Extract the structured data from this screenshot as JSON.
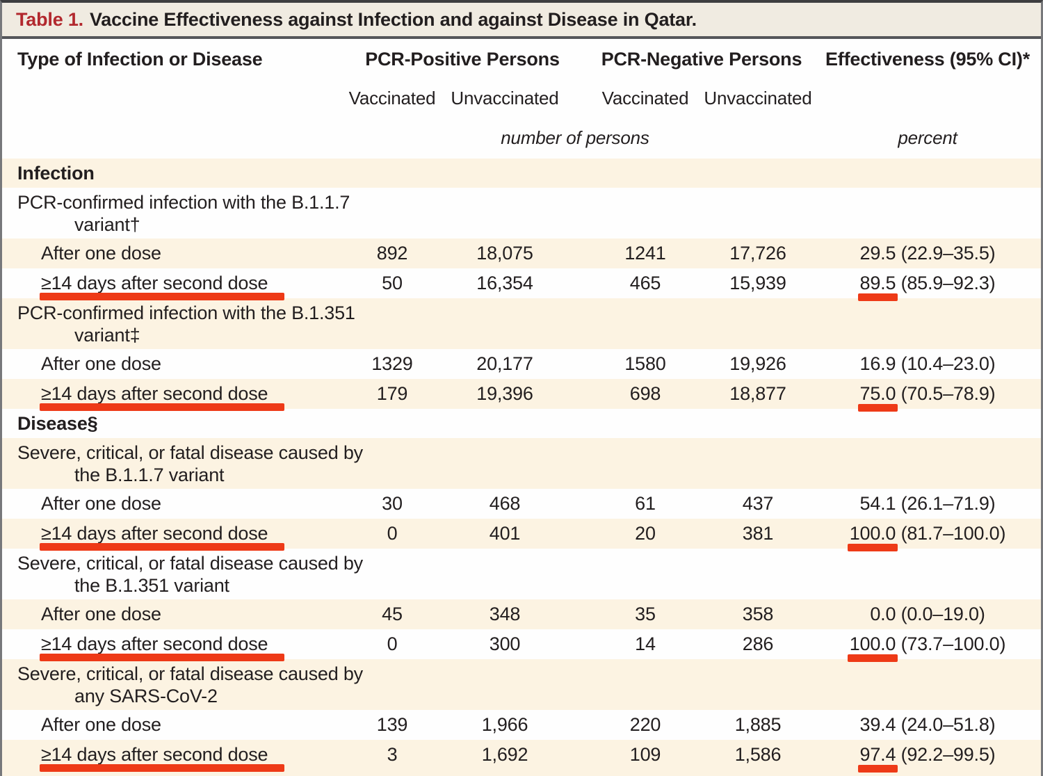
{
  "title": {
    "prefix": "Table 1.",
    "text": "Vaccine Effectiveness against Infection and against Disease in Qatar."
  },
  "header": {
    "type_col": "Type of Infection or Disease",
    "group_positive": "PCR-Positive Persons",
    "group_negative": "PCR-Negative Persons",
    "effectiveness": "Effectiveness (95% CI)*",
    "sub_headers": [
      "Vaccinated",
      "Unvaccinated",
      "Vaccinated",
      "Unvaccinated"
    ],
    "unit_persons": "number of persons",
    "unit_percent": "percent"
  },
  "colors": {
    "accent_red": "#ee3a17",
    "title_red": "#b2282e",
    "cream_row": "#fcf3e2",
    "white_row": "#fefefe",
    "titlebar_bg": "#f0ebe1"
  },
  "rows": [
    {
      "type": "section",
      "shade": "cream",
      "label": "Infection"
    },
    {
      "type": "label",
      "shade": "white",
      "line1": "PCR-confirmed infection with the B.1.1.7",
      "line2": "variant†"
    },
    {
      "type": "data",
      "shade": "cream",
      "label": "After one dose",
      "values": [
        "892",
        "18,075",
        "1241",
        "17,726"
      ],
      "effectiveness": "29.5 (22.9–35.5)",
      "underline_label": false,
      "underline_effect": false
    },
    {
      "type": "data",
      "shade": "white",
      "label": "≥14 days after second dose",
      "values": [
        "50",
        "16,354",
        "465",
        "15,939"
      ],
      "effectiveness": "89.5 (85.9–92.3)",
      "underline_label": true,
      "underline_effect": true
    },
    {
      "type": "label",
      "shade": "cream",
      "line1": "PCR-confirmed infection with the B.1.351",
      "line2": "variant‡"
    },
    {
      "type": "data",
      "shade": "white",
      "label": "After one dose",
      "values": [
        "1329",
        "20,177",
        "1580",
        "19,926"
      ],
      "effectiveness": "16.9 (10.4–23.0)",
      "underline_label": false,
      "underline_effect": false
    },
    {
      "type": "data",
      "shade": "cream",
      "label": "≥14 days after second dose",
      "values": [
        "179",
        "19,396",
        "698",
        "18,877"
      ],
      "effectiveness": "75.0 (70.5–78.9)",
      "underline_label": true,
      "underline_effect": true
    },
    {
      "type": "section",
      "shade": "white",
      "label": "Disease§"
    },
    {
      "type": "label",
      "shade": "cream",
      "line1": "Severe, critical, or fatal disease caused by",
      "line2": "the B.1.1.7 variant"
    },
    {
      "type": "data",
      "shade": "white",
      "label": "After one dose",
      "values": [
        "30",
        "468",
        "61",
        "437"
      ],
      "effectiveness": "54.1 (26.1–71.9)",
      "underline_label": false,
      "underline_effect": false
    },
    {
      "type": "data",
      "shade": "cream",
      "label": "≥14 days after second dose",
      "values": [
        "0",
        "401",
        "20",
        "381"
      ],
      "effectiveness": "100.0 (81.7–100.0)",
      "underline_label": true,
      "underline_effect": true
    },
    {
      "type": "label",
      "shade": "white",
      "line1": "Severe, critical, or fatal disease caused by",
      "line2": "the B.1.351 variant"
    },
    {
      "type": "data",
      "shade": "cream",
      "label": "After one dose",
      "values": [
        "45",
        "348",
        "35",
        "358"
      ],
      "effectiveness": "0.0 (0.0–19.0)",
      "underline_label": false,
      "underline_effect": false
    },
    {
      "type": "data",
      "shade": "white",
      "label": "≥14 days after second dose",
      "values": [
        "0",
        "300",
        "14",
        "286"
      ],
      "effectiveness": "100.0 (73.7–100.0)",
      "underline_label": true,
      "underline_effect": true
    },
    {
      "type": "label",
      "shade": "cream",
      "line1": "Severe, critical, or fatal disease caused by",
      "line2": "any SARS-CoV-2"
    },
    {
      "type": "data",
      "shade": "white",
      "label": "After one dose",
      "values": [
        "139",
        "1,966",
        "220",
        "1,885"
      ],
      "effectiveness": "39.4 (24.0–51.8)",
      "underline_label": false,
      "underline_effect": false
    },
    {
      "type": "data",
      "shade": "cream",
      "label": "≥14 days after second dose",
      "values": [
        "3",
        "1,692",
        "109",
        "1,586"
      ],
      "effectiveness": "97.4 (92.2–99.5)",
      "underline_label": true,
      "underline_effect": true
    }
  ]
}
